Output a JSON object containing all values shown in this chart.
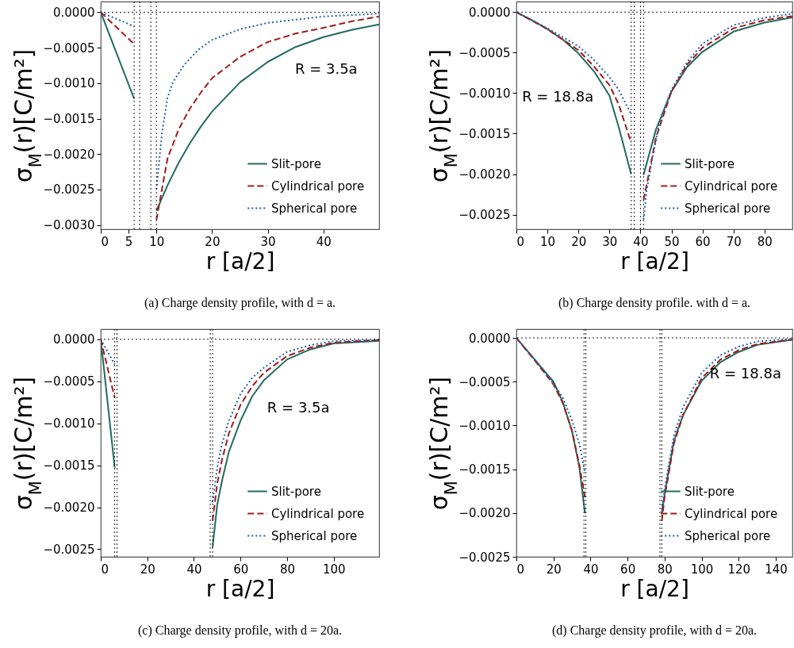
{
  "chart_data": [
    {
      "type": "line",
      "xlabel": "r [a/2]",
      "ylabel": "σ$_{M}$(r)[C/m²]",
      "xlim": [
        0,
        50
      ],
      "xticks": [
        0,
        5,
        10,
        20,
        30,
        40
      ],
      "ylim": [
        -0.00306,
        0.00015
      ],
      "yticks": [
        {
          "value": 0,
          "label": "0.0000"
        },
        {
          "value": -0.0005,
          "label": "−0.0005"
        },
        {
          "value": -0.001,
          "label": "−0.0010"
        },
        {
          "value": -0.0015,
          "label": "−0.0015"
        },
        {
          "value": -0.002,
          "label": "−0.0020"
        },
        {
          "value": -0.0025,
          "label": "−0.0025"
        },
        {
          "value": -0.003,
          "label": "−0.0030"
        }
      ],
      "grid": false,
      "legend": "bottom right",
      "marker": "none",
      "series": [
        {
          "name": "Slit-pore",
          "color": "#216b5d",
          "line_style": "solid",
          "x": [
            0,
            6,
            8,
            10,
            12,
            14,
            16,
            18,
            20,
            25,
            30,
            35,
            40,
            45,
            50
          ],
          "values": [
            0,
            -0.00122,
            null,
            -0.0028,
            -0.00244,
            -0.00212,
            -0.00185,
            -0.00161,
            -0.0014,
            -0.00099,
            -0.0007,
            -0.00049,
            -0.00035,
            -0.00025,
            -0.00017
          ]
        },
        {
          "name": "Cylindrical pore",
          "color": "#a11c1c",
          "line_style": "dashed",
          "x": [
            0,
            6,
            8,
            10,
            12,
            14,
            16,
            18,
            20,
            25,
            30,
            35,
            40,
            45,
            50
          ],
          "values": [
            0,
            -0.00045,
            null,
            -0.00293,
            -0.00206,
            -0.00165,
            -0.00136,
            -0.00113,
            -0.00093,
            -0.00063,
            -0.00042,
            -0.0003,
            -0.00022,
            -0.00013,
            -6e-05
          ]
        },
        {
          "name": "Spherical pore",
          "color": "#1d5fae",
          "line_style": "dotted",
          "x": [
            0,
            6,
            8,
            10,
            11,
            12,
            13,
            15,
            17.5,
            20,
            25,
            30,
            40,
            50
          ],
          "values": [
            0,
            -0.0002,
            null,
            -0.0025,
            -0.0017,
            -0.0012,
            -0.00098,
            -0.00074,
            -0.00053,
            -0.00039,
            -0.00024,
            -0.00015,
            -6e-05,
            -2e-05
          ]
        }
      ],
      "ref_lines": [
        {
          "axis": "y",
          "value": 0,
          "line_style": "dotted"
        },
        {
          "axis": "x",
          "value": 6,
          "line_style": "dotted"
        },
        {
          "axis": "x",
          "value": 7,
          "line_style": "dotted"
        },
        {
          "axis": "x",
          "value": 9,
          "line_style": "dotted"
        },
        {
          "axis": "x",
          "value": 10,
          "line_style": "dotted"
        }
      ],
      "annotations": [
        "R = 3.5a",
        "(a) Charge density profile, with d = a."
      ]
    },
    {
      "type": "line",
      "xlabel": "r [a/2]",
      "ylabel": "σ$_{M}$(r)[C/m²]",
      "xlim": [
        0,
        89
      ],
      "xticks": [
        0,
        10,
        20,
        30,
        40,
        50,
        60,
        70,
        80
      ],
      "ylim": [
        -0.00268,
        0.00013
      ],
      "yticks": [
        {
          "value": 0,
          "label": "0.0000"
        },
        {
          "value": -0.0005,
          "label": "−0.0005"
        },
        {
          "value": -0.001,
          "label": "−0.0010"
        },
        {
          "value": -0.0015,
          "label": "−0.0015"
        },
        {
          "value": -0.002,
          "label": "−0.0020"
        },
        {
          "value": -0.0025,
          "label": "−0.0025"
        }
      ],
      "grid": false,
      "legend": "bottom right",
      "marker": "none",
      "series": [
        {
          "name": "Slit-pore",
          "color": "#216b5d",
          "line_style": "solid",
          "x": [
            0,
            5,
            10,
            15,
            20,
            25,
            30,
            33,
            37,
            39,
            41,
            45,
            50,
            55,
            60,
            70,
            80,
            89
          ],
          "values": [
            0,
            -0.0001,
            -0.00021,
            -0.00034,
            -0.00051,
            -0.00073,
            -0.00103,
            -0.00142,
            -0.002,
            null,
            -0.00201,
            -0.00145,
            -0.00098,
            -0.00068,
            -0.00049,
            -0.00024,
            -0.00013,
            -6.5e-05
          ]
        },
        {
          "name": "Cylindrical pore",
          "color": "#a11c1c",
          "line_style": "dashed",
          "x": [
            0,
            10,
            20,
            25,
            30,
            33,
            37,
            39,
            41,
            43,
            45,
            50,
            55,
            60,
            70,
            80,
            89
          ],
          "values": [
            0,
            -0.00021,
            -0.00047,
            -0.00067,
            -0.0009,
            -0.00114,
            -0.00161,
            null,
            -0.00232,
            -0.00194,
            -0.00155,
            -0.00098,
            -0.00065,
            -0.00044,
            -0.0002,
            -0.0001,
            -5e-05
          ]
        },
        {
          "name": "Spherical pore",
          "color": "#1d5fae",
          "line_style": "dotted",
          "x": [
            0,
            10,
            20,
            25,
            30,
            33,
            37,
            39,
            41,
            42,
            44,
            46,
            48,
            50,
            55,
            60,
            70,
            80,
            89
          ],
          "values": [
            0,
            -0.0002,
            -0.00042,
            -0.00059,
            -0.0008,
            -0.00096,
            -0.00126,
            null,
            -0.00256,
            -0.0022,
            -0.00178,
            -0.00139,
            -0.00116,
            -0.00096,
            -0.00062,
            -0.00039,
            -0.00016,
            -7e-05,
            -2e-05
          ]
        }
      ],
      "ref_lines": [
        {
          "axis": "y",
          "value": 0,
          "line_style": "dotted"
        },
        {
          "axis": "x",
          "value": 37,
          "line_style": "dotted"
        },
        {
          "axis": "x",
          "value": 38,
          "line_style": "dotted"
        },
        {
          "axis": "x",
          "value": 40,
          "line_style": "dotted"
        },
        {
          "axis": "x",
          "value": 41,
          "line_style": "dotted"
        }
      ],
      "annotations": [
        "R = 18.8a",
        "(b) Charge density profile. with d = a."
      ]
    },
    {
      "type": "line",
      "xlabel": "r [a/2]",
      "ylabel": "σ$_{M}$(r)[C/m²]",
      "xlim": [
        0,
        119.5
      ],
      "xticks": [
        0,
        20,
        40,
        60,
        80,
        100
      ],
      "ylim": [
        -0.00259,
        0.00012
      ],
      "yticks": [
        {
          "value": 0,
          "label": "0.0000"
        },
        {
          "value": -0.0005,
          "label": "−0.0005"
        },
        {
          "value": -0.001,
          "label": "−0.0010"
        },
        {
          "value": -0.0015,
          "label": "−0.0015"
        },
        {
          "value": -0.002,
          "label": "−0.0020"
        },
        {
          "value": -0.0025,
          "label": "−0.0025"
        }
      ],
      "grid": false,
      "legend": "bottom right",
      "marker": "none",
      "x": [
        0,
        6,
        27,
        48,
        50,
        52,
        55,
        60,
        65,
        70,
        80,
        90,
        100,
        119.5
      ],
      "series": [
        {
          "name": "Slit-pore",
          "color": "#216b5d",
          "line_style": "solid",
          "values": [
            0,
            -0.00153,
            null,
            -0.00248,
            -0.00197,
            -0.00169,
            -0.00134,
            -0.00097,
            -0.00068,
            -0.00049,
            -0.00024,
            -0.00012,
            -5e-05,
            -2e-05
          ]
        },
        {
          "name": "Cylindrical pore",
          "color": "#a11c1c",
          "line_style": "dashed",
          "values": [
            0,
            -0.0007,
            null,
            -0.00216,
            -0.00172,
            -0.00144,
            -0.00112,
            -0.00078,
            -0.00056,
            -0.0004,
            -0.0002,
            -0.0001,
            -4e-05,
            -1e-05
          ]
        },
        {
          "name": "Spherical pore",
          "color": "#1d5fae",
          "line_style": "dotted",
          "values": [
            0,
            -0.0003,
            null,
            -0.00194,
            -0.00153,
            -0.00125,
            -0.00097,
            -0.00065,
            -0.00046,
            -0.00034,
            -0.00015,
            -7e-05,
            -2e-05,
            -1e-05
          ]
        }
      ],
      "ref_lines": [
        {
          "axis": "y",
          "value": 0,
          "line_style": "dotted"
        },
        {
          "axis": "x",
          "value": 6,
          "line_style": "dotted"
        },
        {
          "axis": "x",
          "value": 7,
          "line_style": "dotted"
        },
        {
          "axis": "x",
          "value": 47,
          "line_style": "dotted"
        },
        {
          "axis": "x",
          "value": 48,
          "line_style": "dotted"
        }
      ],
      "annotations": [
        "R = 3.5a",
        "(c) Charge density profile, with d = 20a."
      ]
    },
    {
      "type": "line",
      "xlabel": "r [a/2]",
      "ylabel": "σ$_{M}$(r)[C/m²]",
      "xlim": [
        0,
        149
      ],
      "xticks": [
        0,
        20,
        40,
        60,
        80,
        100,
        120,
        140
      ],
      "ylim": [
        -0.0025,
        0.0001
      ],
      "yticks": [
        {
          "value": 0,
          "label": "0.0000"
        },
        {
          "value": -0.0005,
          "label": "−0.0005"
        },
        {
          "value": -0.001,
          "label": "−0.0010"
        },
        {
          "value": -0.0015,
          "label": "−0.0015"
        },
        {
          "value": -0.002,
          "label": "−0.0020"
        },
        {
          "value": -0.0025,
          "label": "−0.0025"
        }
      ],
      "grid": false,
      "legend": "bottom right",
      "marker": "none",
      "x": [
        0,
        10,
        20,
        25,
        30,
        34,
        37,
        57,
        78.5,
        80,
        85,
        90,
        100,
        110,
        120,
        130,
        149
      ],
      "series": [
        {
          "name": "Slit-pore",
          "color": "#216b5d",
          "line_style": "solid",
          "values": [
            0,
            -0.00025,
            -0.0005,
            -0.00073,
            -0.00106,
            -0.00148,
            -0.002,
            null,
            -0.00201,
            -0.00179,
            -0.00118,
            -0.00088,
            -0.00049,
            -0.00028,
            -0.00016,
            -8e-05,
            -2e-05
          ]
        },
        {
          "name": "Cylindrical pore",
          "color": "#a11c1c",
          "line_style": "dashed",
          "values": [
            0,
            -0.00026,
            -0.00053,
            -0.00074,
            -0.00106,
            -0.00145,
            -0.00182,
            null,
            -0.00209,
            -0.00182,
            -0.00121,
            -0.00088,
            -0.00046,
            -0.00025,
            -0.00014,
            -7e-05,
            -2e-05
          ]
        },
        {
          "name": "Spherical pore",
          "color": "#1d5fae",
          "line_style": "dotted",
          "values": [
            0,
            -0.00025,
            -0.00052,
            -0.00068,
            -0.00094,
            -0.00121,
            -0.00154,
            null,
            -0.00197,
            -0.00173,
            -0.00112,
            -0.00079,
            -0.0004,
            -0.0002,
            -0.0001,
            -4e-05,
            -1e-05
          ]
        }
      ],
      "ref_lines": [
        {
          "axis": "y",
          "value": 0,
          "line_style": "dotted"
        },
        {
          "axis": "x",
          "value": 36.5,
          "line_style": "dotted"
        },
        {
          "axis": "x",
          "value": 37.5,
          "line_style": "dotted"
        },
        {
          "axis": "x",
          "value": 77.5,
          "line_style": "dotted"
        },
        {
          "axis": "x",
          "value": 78.5,
          "line_style": "dotted"
        }
      ],
      "annotations": [
        "R = 18.8a",
        "(d) Charge density profile, with d = 20a."
      ]
    }
  ]
}
